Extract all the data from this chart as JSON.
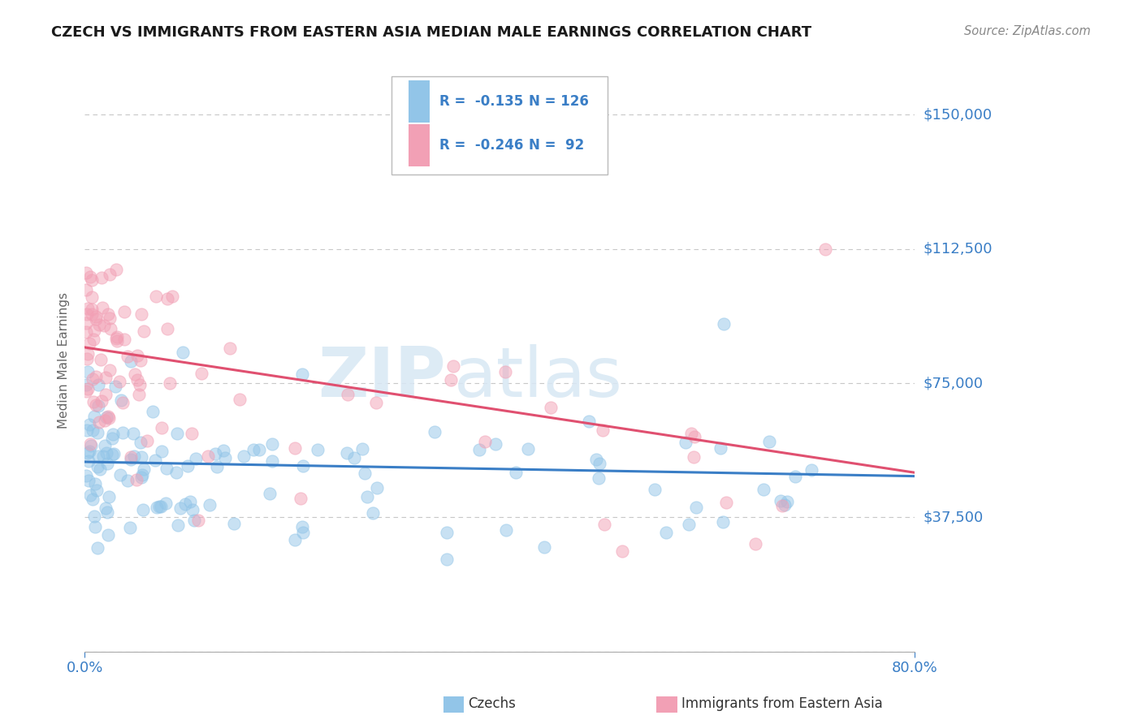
{
  "title": "CZECH VS IMMIGRANTS FROM EASTERN ASIA MEDIAN MALE EARNINGS CORRELATION CHART",
  "source": "Source: ZipAtlas.com",
  "ylabel": "Median Male Earnings",
  "xlim": [
    0.0,
    0.8
  ],
  "ylim": [
    0,
    162500
  ],
  "yticks": [
    0,
    37500,
    75000,
    112500,
    150000
  ],
  "ytick_labels": [
    "",
    "$37,500",
    "$75,000",
    "$112,500",
    "$150,000"
  ],
  "xtick_labels": [
    "0.0%",
    "80.0%"
  ],
  "blue_color": "#92C5E8",
  "pink_color": "#F2A0B5",
  "blue_line_color": "#3A7EC6",
  "pink_line_color": "#E05070",
  "text_color": "#3A7EC6",
  "title_color": "#1a1a1a",
  "watermark_zip": "ZIP",
  "watermark_atlas": "atlas",
  "background_color": "#FFFFFF",
  "grid_color": "#C8C8C8",
  "czechs_label": "Czechs",
  "immigrants_label": "Immigrants from Eastern Asia",
  "legend_r1": "R = -0.135",
  "legend_n1": "N = 126",
  "legend_r2": "R = -0.246",
  "legend_n2": "N =  92",
  "czechs_seed": 42,
  "immigrants_seed": 99
}
